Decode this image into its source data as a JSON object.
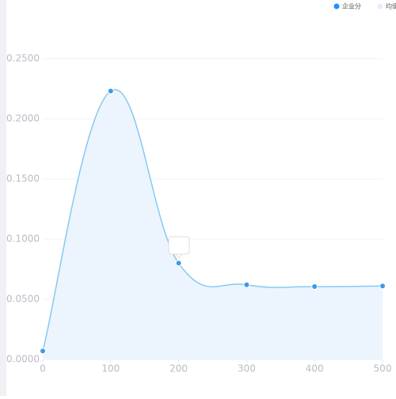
{
  "chart_data": {
    "type": "line",
    "x": [
      0,
      100,
      200,
      300,
      400,
      500
    ],
    "series": [
      {
        "name": "企业分",
        "color": "#88c9ee",
        "values": [
          0.007,
          0.223,
          0.08,
          0.062,
          0.0605,
          0.061
        ]
      }
    ],
    "legend": [
      {
        "name": "企业分",
        "color": "#1e90ff"
      },
      {
        "name": "均值线",
        "color": "#e6eefa"
      }
    ],
    "xlim": [
      0,
      500
    ],
    "xticks": [
      0,
      100,
      200,
      300,
      400,
      500
    ],
    "ylim": [
      0,
      0.25
    ],
    "yticks": [
      {
        "value": 0,
        "label": "0.0000"
      },
      {
        "value": 0.05,
        "label": "0.0500"
      },
      {
        "value": 0.1,
        "label": "0.1000"
      },
      {
        "value": 0.15,
        "label": "0.1500"
      },
      {
        "value": 0.2,
        "label": "0.2000"
      },
      {
        "value": 0.25,
        "label": "0.2500"
      }
    ],
    "grid": true,
    "area": true
  }
}
